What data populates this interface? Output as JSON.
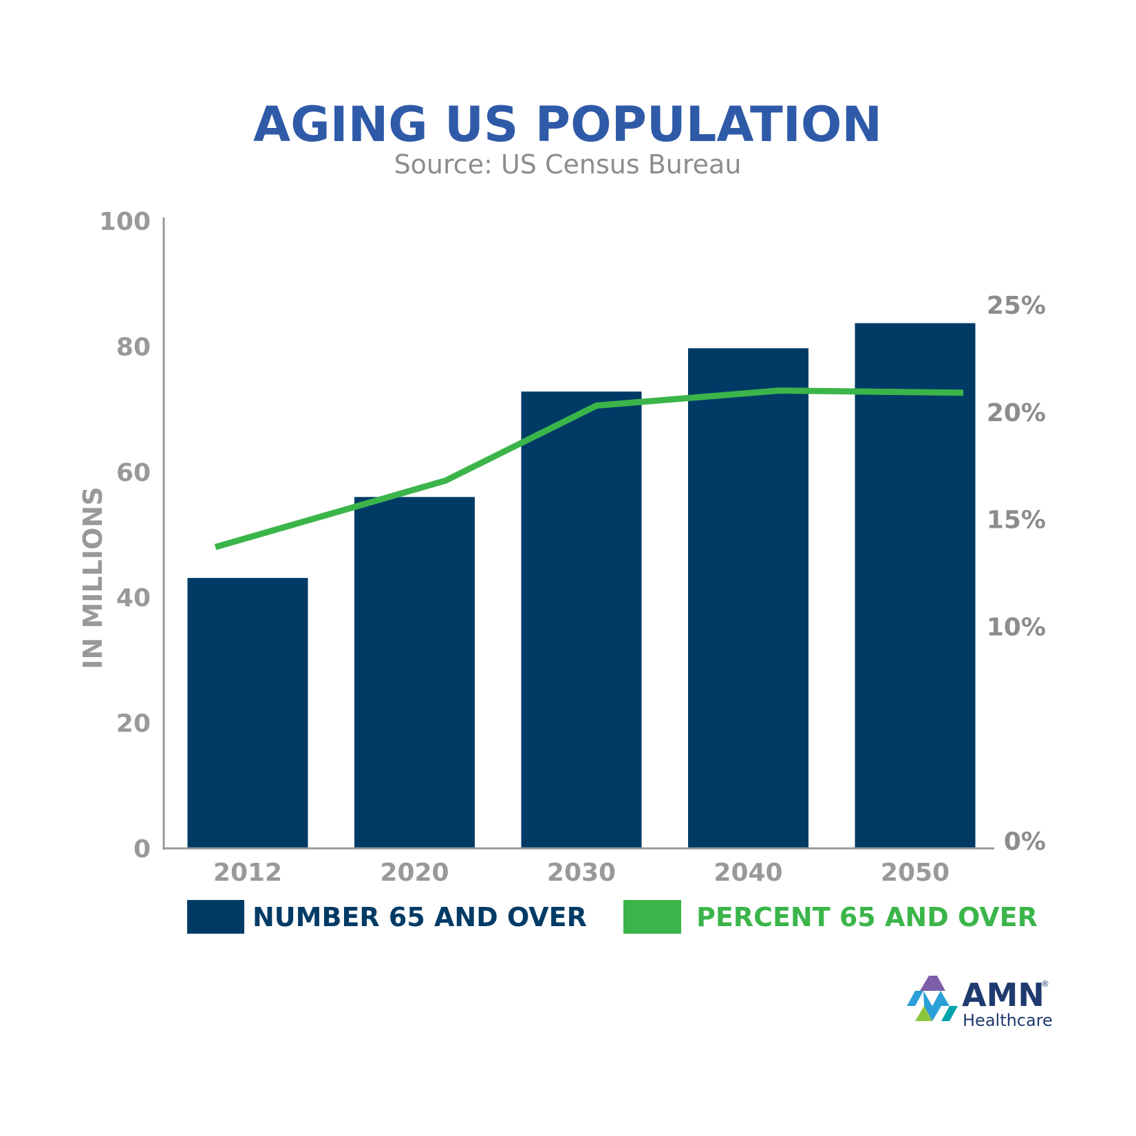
{
  "chart_data": {
    "type": "bar",
    "title": "AGING US POPULATION",
    "subtitle": "Source: US Census Bureau",
    "categories": [
      "2012",
      "2020",
      "2030",
      "2040",
      "2050"
    ],
    "series": [
      {
        "name": "NUMBER 65 AND OVER",
        "type": "bar",
        "axis": "left",
        "values": [
          43.1,
          56,
          72.8,
          79.7,
          83.7
        ],
        "color": "#003b66"
      },
      {
        "name": "PERCENT 65 AND OVER",
        "type": "line",
        "axis": "right",
        "values": [
          13.7,
          16.8,
          20.3,
          21.0,
          20.9
        ],
        "color": "#3bb54a"
      }
    ],
    "ylabel": "IN MILLIONS",
    "ylim": [
      0,
      100
    ],
    "yticks": [
      "0",
      "20",
      "40",
      "60",
      "80",
      "100"
    ],
    "y2lim": [
      0,
      30
    ],
    "y2ticks": [
      {
        "value": 0,
        "label": "0%"
      },
      {
        "value": 10,
        "label": "10%"
      },
      {
        "value": 15,
        "label": "15%"
      },
      {
        "value": 20,
        "label": "20%"
      },
      {
        "value": 25,
        "label": "25%"
      }
    ],
    "grid": false,
    "legend_position": "bottom"
  },
  "logo": {
    "name": "AMN",
    "sub": "Healthcare",
    "mark": "®",
    "colors": [
      "#7b5ea7",
      "#2a9fd8",
      "#8cc63f",
      "#00a3ad"
    ]
  }
}
